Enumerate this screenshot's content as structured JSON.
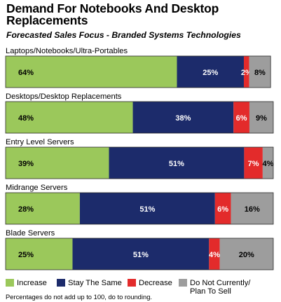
{
  "title": "Demand For Notebooks And Desktop Replacements",
  "subtitle": "Forecasted Sales Focus - Branded Systems Technologies",
  "footnote": "Percentages do not add up to 100, do to rounding.",
  "colors": {
    "increase": "#9bc85b",
    "stay_the_same": "#1c2b6b",
    "decrease": "#e32b2b",
    "do_not": "#9d9d9d"
  },
  "legend": [
    {
      "label": "Increase",
      "color": "#9bc85b"
    },
    {
      "label": "Stay The Same",
      "color": "#1c2b6b"
    },
    {
      "label": "Decrease",
      "color": "#e32b2b"
    },
    {
      "label": "Do Not Currently/\nPlan To Sell",
      "color": "#9d9d9d"
    }
  ],
  "chart_data": {
    "type": "bar",
    "orientation": "horizontal",
    "stacked": true,
    "title": "Demand For Notebooks And Desktop Replacements",
    "subtitle": "Forecasted Sales Focus - Branded Systems Technologies",
    "categories": [
      "Laptops/Notebooks/Ultra-Portables",
      "Desktops/Desktop Replacements",
      "Entry Level Servers",
      "Midrange Servers",
      "Blade Servers"
    ],
    "series": [
      {
        "name": "Increase",
        "values": [
          64,
          48,
          39,
          28,
          25
        ]
      },
      {
        "name": "Stay The Same",
        "values": [
          25,
          38,
          51,
          51,
          51
        ]
      },
      {
        "name": "Decrease",
        "values": [
          2,
          6,
          7,
          6,
          4
        ]
      },
      {
        "name": "Do Not Currently/ Plan To Sell",
        "values": [
          8,
          9,
          4,
          16,
          20
        ]
      }
    ],
    "value_labels": [
      [
        "64%",
        "25%",
        "2%",
        "8%"
      ],
      [
        "48%",
        "38%",
        "6%",
        "9%"
      ],
      [
        "39%",
        "51%",
        "7%",
        "4%"
      ],
      [
        "28%",
        "51%",
        "6%",
        "16%"
      ],
      [
        "25%",
        "51%",
        "4%",
        "20%"
      ]
    ],
    "legend_position": "bottom",
    "xlim": [
      0,
      100
    ]
  }
}
